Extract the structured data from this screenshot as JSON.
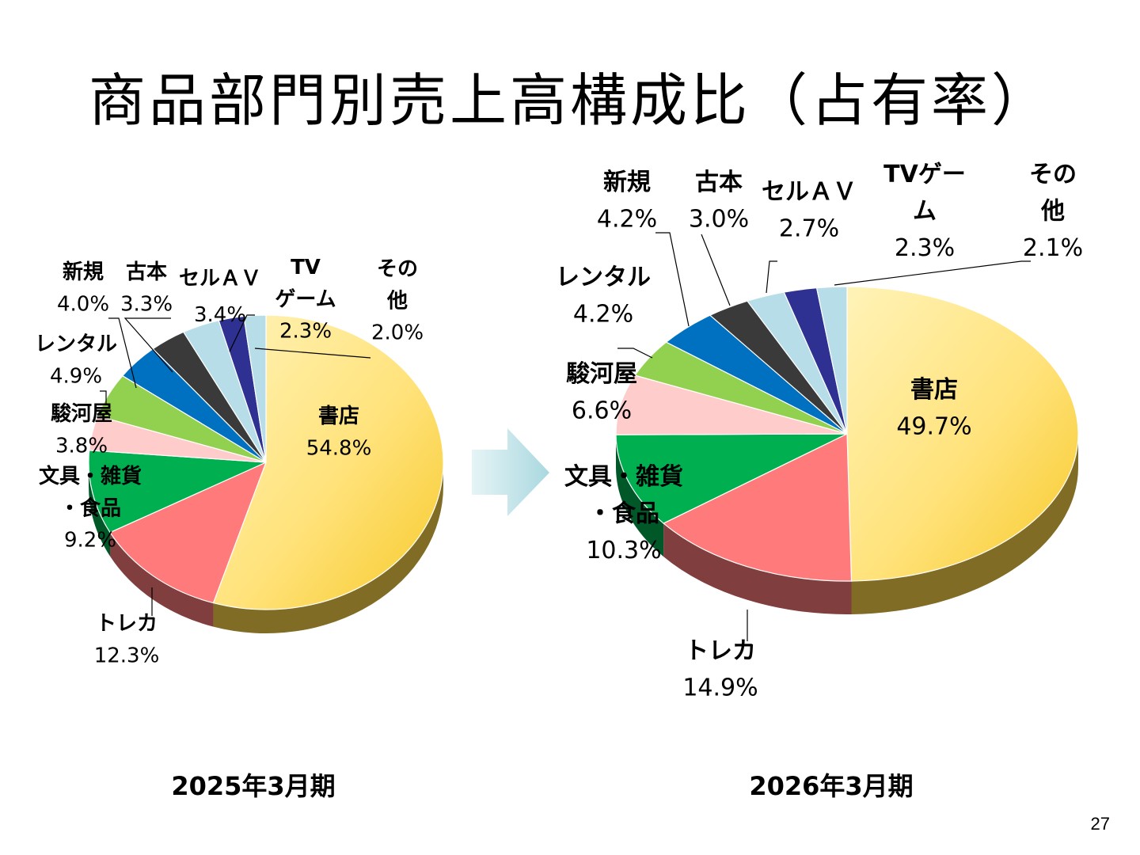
{
  "title": "商品部門別売上高構成比（占有率）",
  "page_number": "27",
  "colors": {
    "書店": "#ffd84a",
    "トレカ": "#ff7b7b",
    "文具・雑貨・食品": "#00b050",
    "駿河屋": "#ffcccc",
    "レンタル": "#92d050",
    "新規": "#0070c0",
    "古本": "#3a3a3a",
    "セルAV": "#b7dde8",
    "TVゲーム": "#2e3192",
    "その他": "#b7dde8"
  },
  "chart_data": [
    {
      "type": "pie",
      "period": "2025年3月期",
      "slices": [
        {
          "name": "書店",
          "label_lines": [
            "書店"
          ],
          "value_text": "54.8%",
          "value": 54.8
        },
        {
          "name": "トレカ",
          "label_lines": [
            "トレカ"
          ],
          "value_text": "12.3%",
          "value": 12.3
        },
        {
          "name": "文具・雑貨・食品",
          "label_lines": [
            "文具・雑貨",
            "・食品"
          ],
          "value_text": "9.2%",
          "value": 9.2
        },
        {
          "name": "駿河屋",
          "label_lines": [
            "駿河屋"
          ],
          "value_text": "3.8%",
          "value": 3.8
        },
        {
          "name": "レンタル",
          "label_lines": [
            "レンタル"
          ],
          "value_text": "4.9%",
          "value": 4.9
        },
        {
          "name": "新規",
          "label_lines": [
            "新規"
          ],
          "value_text": "4.0%",
          "value": 4.0
        },
        {
          "name": "古本",
          "label_lines": [
            "古本"
          ],
          "value_text": "3.3%",
          "value": 3.3
        },
        {
          "name": "セルAV",
          "label_lines": [
            "セルＡＶ"
          ],
          "value_text": "3.4%",
          "value": 3.4
        },
        {
          "name": "TVゲーム",
          "label_lines": [
            "TV",
            "ゲーム"
          ],
          "value_text": "2.3%",
          "value": 2.3
        },
        {
          "name": "その他",
          "label_lines": [
            "その",
            "他"
          ],
          "value_text": "2.0%",
          "value": 2.0
        }
      ]
    },
    {
      "type": "pie",
      "period": "2026年3月期",
      "slices": [
        {
          "name": "書店",
          "label_lines": [
            "書店"
          ],
          "value_text": "49.7%",
          "value": 49.7
        },
        {
          "name": "トレカ",
          "label_lines": [
            "トレカ"
          ],
          "value_text": "14.9%",
          "value": 14.9
        },
        {
          "name": "文具・雑貨・食品",
          "label_lines": [
            "文具・雑貨",
            "・食品"
          ],
          "value_text": "10.3%",
          "value": 10.3
        },
        {
          "name": "駿河屋",
          "label_lines": [
            "駿河屋"
          ],
          "value_text": "6.6%",
          "value": 6.6
        },
        {
          "name": "レンタル",
          "label_lines": [
            "レンタル"
          ],
          "value_text": "4.2%",
          "value": 4.2
        },
        {
          "name": "新規",
          "label_lines": [
            "新規"
          ],
          "value_text": "4.2%",
          "value": 4.2
        },
        {
          "name": "古本",
          "label_lines": [
            "古本"
          ],
          "value_text": "3.0%",
          "value": 3.0
        },
        {
          "name": "セルAV",
          "label_lines": [
            "セルＡＶ"
          ],
          "value_text": "2.7%",
          "value": 2.7
        },
        {
          "name": "TVゲーム",
          "label_lines": [
            "TVゲー",
            "ム"
          ],
          "value_text": "2.3%",
          "value": 2.3
        },
        {
          "name": "その他",
          "label_lines": [
            "その",
            "他"
          ],
          "value_text": "2.1%",
          "value": 2.1
        }
      ]
    }
  ]
}
